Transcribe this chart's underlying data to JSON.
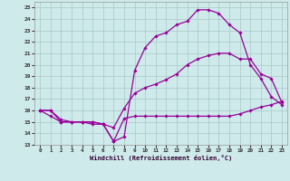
{
  "xlabel": "Windchill (Refroidissement éolien,°C)",
  "bg_color": "#ceeaea",
  "line_color": "#990099",
  "grid_color": "#aac8c8",
  "x_ticks": [
    0,
    1,
    2,
    3,
    4,
    5,
    6,
    7,
    8,
    9,
    10,
    11,
    12,
    13,
    14,
    15,
    16,
    17,
    18,
    19,
    20,
    21,
    22,
    23
  ],
  "y_ticks": [
    13,
    14,
    15,
    16,
    17,
    18,
    19,
    20,
    21,
    22,
    23,
    24,
    25
  ],
  "xlim": [
    -0.5,
    23.5
  ],
  "ylim": [
    13,
    25.5
  ],
  "curve1_x": [
    0,
    1,
    2,
    3,
    4,
    5,
    6,
    7,
    8,
    9,
    10,
    11,
    12,
    13,
    14,
    15,
    16,
    17,
    18,
    19,
    20,
    21,
    22,
    23
  ],
  "curve1_y": [
    16,
    16,
    15,
    15,
    15,
    15,
    14.8,
    13.3,
    15.3,
    15.5,
    15.5,
    15.5,
    15.5,
    15.5,
    15.5,
    15.5,
    15.5,
    15.5,
    15.5,
    15.7,
    16.0,
    16.3,
    16.5,
    16.8
  ],
  "curve2_x": [
    0,
    1,
    2,
    3,
    4,
    5,
    6,
    7,
    8,
    9,
    10,
    11,
    12,
    13,
    14,
    15,
    16,
    17,
    18,
    19,
    20,
    21,
    22,
    23
  ],
  "curve2_y": [
    16,
    15.5,
    15,
    15,
    15,
    14.8,
    14.8,
    14.5,
    16.2,
    17.5,
    18.0,
    18.3,
    18.7,
    19.2,
    20.0,
    20.5,
    20.8,
    21.0,
    21.0,
    20.5,
    20.5,
    19.2,
    18.8,
    16.7
  ],
  "curve3_x": [
    0,
    1,
    2,
    3,
    4,
    5,
    6,
    7,
    8,
    9,
    10,
    11,
    12,
    13,
    14,
    15,
    16,
    17,
    18,
    19,
    20,
    21,
    22,
    23
  ],
  "curve3_y": [
    16,
    16,
    15.2,
    15,
    15,
    15,
    14.8,
    13.3,
    13.7,
    19.5,
    21.5,
    22.5,
    22.8,
    23.5,
    23.8,
    24.8,
    24.8,
    24.5,
    23.5,
    22.8,
    20.0,
    18.8,
    17.2,
    16.5
  ]
}
